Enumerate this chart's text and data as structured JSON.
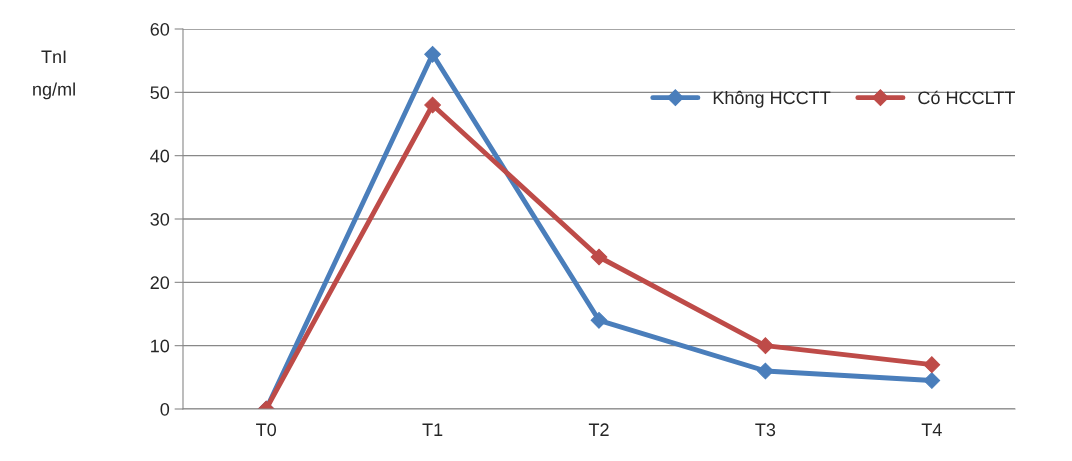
{
  "chart_data": {
    "type": "line",
    "ylabel": "TnI\nng/ml",
    "categories": [
      "T0",
      "T1",
      "T2",
      "T3",
      "T4"
    ],
    "series": [
      {
        "name": "Không HCCTT",
        "color": "#4a7ebb",
        "values": [
          0,
          56,
          14,
          6,
          4.5
        ]
      },
      {
        "name": "Có HCCLTT",
        "color": "#be4b48",
        "values": [
          0,
          48,
          24,
          10,
          7
        ]
      }
    ],
    "ylim": [
      0,
      60
    ],
    "yticks": [
      0,
      10,
      20,
      30,
      40,
      50,
      60
    ],
    "grid": "y",
    "legend": "top right",
    "marker": "diamond",
    "line_style": "solid"
  }
}
